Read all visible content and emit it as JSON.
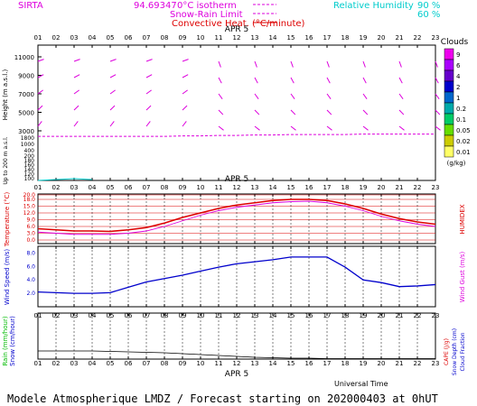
{
  "station": "SIRTA",
  "coords": "94.69347",
  "top_legend": {
    "isotherm": "0°C isotherm",
    "snow_rain": "Snow-Rain Limit",
    "convective": "Convective Heat. (°C/minute)",
    "rh_label": "Relative Humidity",
    "rh_90": "90 %",
    "rh_60": "60 %"
  },
  "date_label": "APR  5",
  "hours": [
    "01",
    "02",
    "03",
    "04",
    "05",
    "06",
    "07",
    "08",
    "09",
    "10",
    "11",
    "12",
    "13",
    "14",
    "15",
    "16",
    "17",
    "18",
    "19",
    "20",
    "21",
    "22",
    "23"
  ],
  "footer": "Modele Atmospherique LMDZ / Forecast starting on 202000403 at 0hUT",
  "xlabel": "Universal Time",
  "colors": {
    "magenta": "#dd00dd",
    "cyan": "#00cccc",
    "red": "#dd0000",
    "blue": "#0000cc",
    "green": "#00bb00"
  },
  "chart_data": [
    {
      "type": "line",
      "title": "",
      "ylabel": "Height (m a.s.l.)",
      "ylabel2": "Up to 200 m a.s.l.",
      "yticks_upper": [
        "11000",
        "9000",
        "7000",
        "5000",
        "3000"
      ],
      "yticks_upper_values": [
        11000,
        9000,
        7000,
        5000,
        3000
      ],
      "yticks_lower": [
        "1800",
        "1000",
        "400",
        "200",
        "180",
        "160",
        "140",
        "120",
        "100"
      ],
      "yticks_minor": [
        "10000",
        "8000",
        "6000",
        "4000"
      ],
      "freezing_level_x": [
        1,
        2,
        3,
        4,
        5,
        6,
        7,
        8,
        9,
        10,
        11,
        12,
        13,
        14,
        15,
        16,
        17,
        18,
        19,
        20,
        21,
        22,
        23
      ],
      "freezing_level": [
        2400,
        2400,
        2400,
        2400,
        2400,
        2400,
        2400,
        2400,
        2450,
        2450,
        2500,
        2500,
        2550,
        2550,
        2600,
        2600,
        2600,
        2600,
        2650,
        2650,
        2650,
        2650,
        2650
      ],
      "cloud_colorbar_title": "Clouds",
      "cloud_colorbar_unit": "(g/kg)",
      "cloud_levels": [
        "9",
        "6",
        "4",
        "2",
        "1",
        "0.2",
        "0.1",
        "0.05",
        "0.02",
        "0.01"
      ],
      "cloud_colors": [
        "#ee00ee",
        "#aa00ff",
        "#6600cc",
        "#0000cc",
        "#0066cc",
        "#00aaaa",
        "#00cc66",
        "#66dd00",
        "#cccc00",
        "#ffff66"
      ]
    },
    {
      "type": "line",
      "title": "",
      "ylabel": "Temperature (°C)",
      "ylabel2": "HUMIDEX",
      "yticks": [
        "20.0",
        "18.0",
        "15.0",
        "12.0",
        "9.0",
        "6.0",
        "3.0",
        "0.0"
      ],
      "ylim": [
        0,
        20
      ],
      "x": [
        1,
        2,
        3,
        4,
        5,
        6,
        7,
        8,
        9,
        10,
        11,
        12,
        13,
        14,
        15,
        16,
        17,
        18,
        19,
        20,
        21,
        22,
        23
      ],
      "series": [
        {
          "values": [
            5.0,
            4.5,
            4.0,
            4.0,
            3.8,
            4.5,
            5.5,
            7.5,
            10.0,
            12.0,
            14.0,
            15.5,
            16.5,
            17.5,
            18.0,
            18.0,
            17.5,
            16.0,
            14.0,
            11.5,
            9.5,
            8.0,
            7.0
          ]
        },
        {
          "values": [
            3.5,
            3.0,
            2.5,
            2.5,
            2.5,
            3.0,
            4.0,
            6.0,
            8.5,
            11.0,
            13.0,
            14.5,
            15.5,
            16.5,
            17.0,
            17.2,
            16.5,
            15.0,
            13.0,
            10.5,
            8.5,
            7.0,
            6.0
          ]
        }
      ]
    },
    {
      "type": "line",
      "title": "",
      "ylabel": "Wind Speed (m/s)",
      "ylabel2": "Wind Gust (m/s)",
      "yticks": [
        "8.0",
        "6.0",
        "4.0",
        "2.0"
      ],
      "ylim": [
        0,
        9
      ],
      "x": [
        1,
        2,
        3,
        4,
        5,
        6,
        7,
        8,
        9,
        10,
        11,
        12,
        13,
        14,
        15,
        16,
        17,
        18,
        19,
        20,
        21,
        22,
        23
      ],
      "series": [
        {
          "values": [
            2.2,
            2.1,
            2.0,
            2.0,
            2.1,
            2.9,
            3.7,
            4.2,
            4.7,
            5.3,
            5.9,
            6.4,
            6.7,
            7.0,
            7.4,
            7.4,
            7.4,
            5.9,
            4.0,
            3.6,
            3.0,
            3.1,
            3.3
          ]
        }
      ]
    },
    {
      "type": "line",
      "title": "",
      "ylabel": "Rain (mm/hour)",
      "ylabel_snow": "Snow (cm/hour)",
      "ylabel2": "CAPE (J/g)",
      "ylabel3": "Snow Depth (cm)",
      "ylabel4": "Cloud Fraction",
      "x": [
        1,
        2,
        3,
        4,
        5,
        6,
        7,
        8,
        9,
        10,
        11,
        12,
        13,
        14,
        15,
        16,
        17,
        18,
        19,
        20,
        21,
        22,
        23
      ],
      "series": [
        {
          "values": [
            0.18,
            0.18,
            0.18,
            0.18,
            0.17,
            0.16,
            0.15,
            0.14,
            0.12,
            0.1,
            0.08,
            0.06,
            0.04,
            0.03,
            0.02,
            0.02,
            0.01,
            0.01,
            0.01,
            0.01,
            0.01,
            0.01,
            0.01
          ]
        }
      ]
    }
  ]
}
